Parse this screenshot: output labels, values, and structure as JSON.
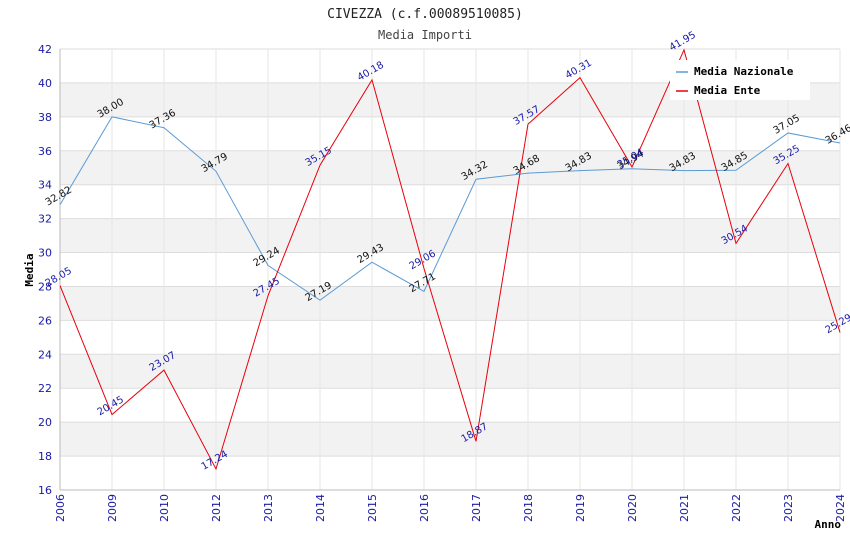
{
  "chart_data": {
    "type": "line",
    "title": "CIVEZZA (c.f.00089510085)",
    "subtitle": "Media Importi",
    "xlabel": "Anno",
    "ylabel": "Media",
    "ylim": [
      16,
      42
    ],
    "yticks": [
      16,
      18,
      20,
      22,
      24,
      26,
      28,
      30,
      32,
      34,
      36,
      38,
      40,
      42
    ],
    "categories": [
      "2006",
      "2009",
      "2010",
      "2012",
      "2013",
      "2014",
      "2015",
      "2016",
      "2017",
      "2018",
      "2019",
      "2020",
      "2021",
      "2022",
      "2023",
      "2024"
    ],
    "series": [
      {
        "name": "Media Nazionale",
        "color": "#5b9bd5",
        "values": [
          32.82,
          38.0,
          37.36,
          34.79,
          29.24,
          27.19,
          29.43,
          27.71,
          34.32,
          34.68,
          34.83,
          34.94,
          34.83,
          34.85,
          37.05,
          36.46
        ],
        "labels": [
          "32.82",
          "38.00",
          "37.36",
          "34.79",
          "29.24",
          "27.19",
          "29.43",
          "27.71",
          "34.32",
          "34.68",
          "34.83",
          "34.94",
          "34.83",
          "34.85",
          "37.05",
          "36.46"
        ]
      },
      {
        "name": "Media Ente",
        "color": "#e8000b",
        "values": [
          28.05,
          20.45,
          23.07,
          17.24,
          27.45,
          35.15,
          40.18,
          29.06,
          18.87,
          37.57,
          40.31,
          35.04,
          41.95,
          30.54,
          35.25,
          25.29
        ],
        "labels": [
          "28.05",
          "20.45",
          "23.07",
          "17.24",
          "27.45",
          "35.15",
          "40.18",
          "29.06",
          "18.87",
          "37.57",
          "40.31",
          "35.04",
          "41.95",
          "30.54",
          "35.25",
          "25.29"
        ]
      }
    ],
    "grid": true,
    "legend": "top-right"
  }
}
